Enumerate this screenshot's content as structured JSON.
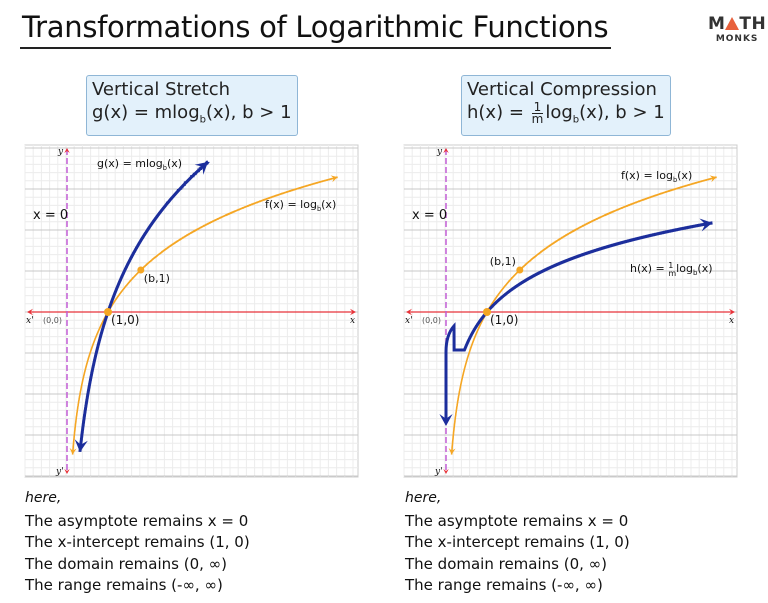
{
  "title": "Transformations of Logarithmic Functions",
  "logo": {
    "top": "MATH",
    "bottom": "MONKS"
  },
  "colors": {
    "parent_curve": "#f5a623",
    "transformed_curve": "#1c2e9c",
    "x_axis": "#e8333a",
    "asymptote": "#c35fd6",
    "box_bg": "#e3f1fb",
    "grid": "#d4d4d4"
  },
  "panels": [
    {
      "heading": "Vertical Stretch",
      "formula_prefix": "g(x) = mlog",
      "formula_base": "b",
      "formula_suffix": "(x), b > 1",
      "labels": {
        "transformed": "g(x) = mlog_b(x)",
        "parent": "f(x) = log_b(x)",
        "asymptote": "x = 0",
        "point_b": "(b,1)",
        "point_1": "(1,0)",
        "origin": "(0,0)",
        "x": "x",
        "x_neg": "x'",
        "y": "y",
        "y_neg": "y'"
      },
      "notes": {
        "here": "here,",
        "lines": [
          "The asymptote remains x = 0",
          "The x-intercept remains (1, 0)",
          "The domain remains (0, ∞)",
          "The range remains (-∞, ∞)"
        ]
      }
    },
    {
      "heading": "Vertical Compression",
      "formula_prefix": "h(x) = ",
      "formula_num": "1",
      "formula_den": "m",
      "formula_mid": "log",
      "formula_base": "b",
      "formula_suffix": "(x), b > 1",
      "labels": {
        "transformed": "h(x) = 1/m log_b(x)",
        "parent": "f(x) = log_b(x)",
        "asymptote": "x = 0",
        "point_b": "(b,1)",
        "point_1": "(1,0)",
        "origin": "(0,0)",
        "x": "x",
        "x_neg": "x'",
        "y": "y",
        "y_neg": "y'"
      },
      "notes": {
        "here": "here,",
        "lines": [
          "The asymptote remains x = 0",
          "The x-intercept remains (1, 0)",
          "The domain remains (0, ∞)",
          "The range remains (-∞, ∞)"
        ]
      }
    }
  ]
}
